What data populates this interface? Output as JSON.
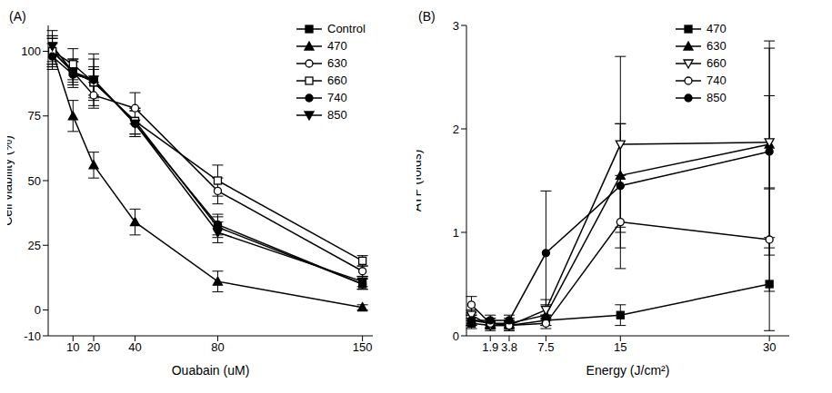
{
  "chart_data": [
    {
      "type": "line",
      "title": "(A)",
      "x_label": "Ouabain (uM)",
      "y_label": "Cell viability (%)",
      "x": [
        0,
        10,
        20,
        40,
        80,
        150
      ],
      "xlim": [
        -2,
        155
      ],
      "xticks": [
        10,
        20,
        40,
        80,
        150
      ],
      "ylim": [
        -10,
        110
      ],
      "yticks": [
        -10,
        0,
        25,
        50,
        75,
        100
      ],
      "grid": false,
      "legend": "upper right",
      "series": [
        {
          "name": "Control",
          "color": "#000000",
          "marker": "square",
          "values": [
            100,
            92,
            88,
            73,
            32,
            10
          ],
          "errors": [
            5,
            4,
            5,
            5,
            4,
            2
          ]
        },
        {
          "name": "470",
          "color": "#000000",
          "marker": "triangle",
          "values": [
            100,
            75,
            56,
            34,
            11,
            1
          ],
          "errors": [
            6,
            6,
            5,
            5,
            4,
            1
          ]
        },
        {
          "name": "630",
          "color": "#000000",
          "marker": "open_circle",
          "values": [
            100,
            92,
            83,
            78,
            46,
            15
          ],
          "errors": [
            5,
            5,
            5,
            6,
            5,
            2
          ]
        },
        {
          "name": "660",
          "color": "#000000",
          "marker": "open_square",
          "values": [
            100,
            95,
            88,
            73,
            50,
            19
          ],
          "errors": [
            6,
            6,
            6,
            5,
            6,
            2
          ]
        },
        {
          "name": "740",
          "color": "#000000",
          "marker": "circle",
          "values": [
            98,
            91,
            89,
            72,
            33,
            10
          ],
          "errors": [
            5,
            5,
            10,
            5,
            4,
            2
          ]
        },
        {
          "name": "850",
          "color": "#000000",
          "marker": "triangle_down",
          "values": [
            102,
            92,
            89,
            72,
            30,
            11
          ],
          "errors": [
            6,
            5,
            8,
            5,
            4,
            2
          ]
        }
      ]
    },
    {
      "type": "line",
      "title": "(B)",
      "x_label": "Energy (J/cm²)",
      "y_label": "ATP (folds)",
      "x": [
        0,
        1.9,
        3.8,
        7.5,
        15,
        30
      ],
      "xlim": [
        -0.5,
        32
      ],
      "xticks": [
        1.9,
        3.8,
        7.5,
        15,
        30
      ],
      "ylim": [
        0,
        3
      ],
      "yticks": [
        0,
        1,
        2,
        3
      ],
      "grid": false,
      "legend": "upper right",
      "series": [
        {
          "name": "470",
          "color": "#000000",
          "marker": "square",
          "values": [
            0.12,
            0.1,
            0.1,
            0.15,
            0.2,
            0.5
          ],
          "errors": [
            0.05,
            0.03,
            0.03,
            0.05,
            0.1,
            0.45
          ]
        },
        {
          "name": "630",
          "color": "#000000",
          "marker": "triangle",
          "values": [
            0.15,
            0.12,
            0.12,
            0.2,
            1.55,
            1.85
          ],
          "errors": [
            0.05,
            0.05,
            0.05,
            0.1,
            0.5,
            1.0
          ]
        },
        {
          "name": "660",
          "color": "#000000",
          "marker": "open_triangle_down",
          "values": [
            0.2,
            0.1,
            0.1,
            0.25,
            1.85,
            1.87
          ],
          "errors": [
            0.05,
            0.05,
            0.05,
            0.1,
            0.85,
            0.45
          ]
        },
        {
          "name": "740",
          "color": "#000000",
          "marker": "open_circle",
          "values": [
            0.3,
            0.12,
            0.1,
            0.12,
            1.1,
            0.93
          ],
          "errors": [
            0.08,
            0.05,
            0.05,
            0.05,
            0.45,
            0.5
          ]
        },
        {
          "name": "850",
          "color": "#000000",
          "marker": "circle",
          "values": [
            0.15,
            0.15,
            0.15,
            0.8,
            1.45,
            1.78
          ],
          "errors": [
            0.05,
            0.05,
            0.05,
            0.6,
            0.6,
            1.0
          ]
        }
      ]
    }
  ]
}
